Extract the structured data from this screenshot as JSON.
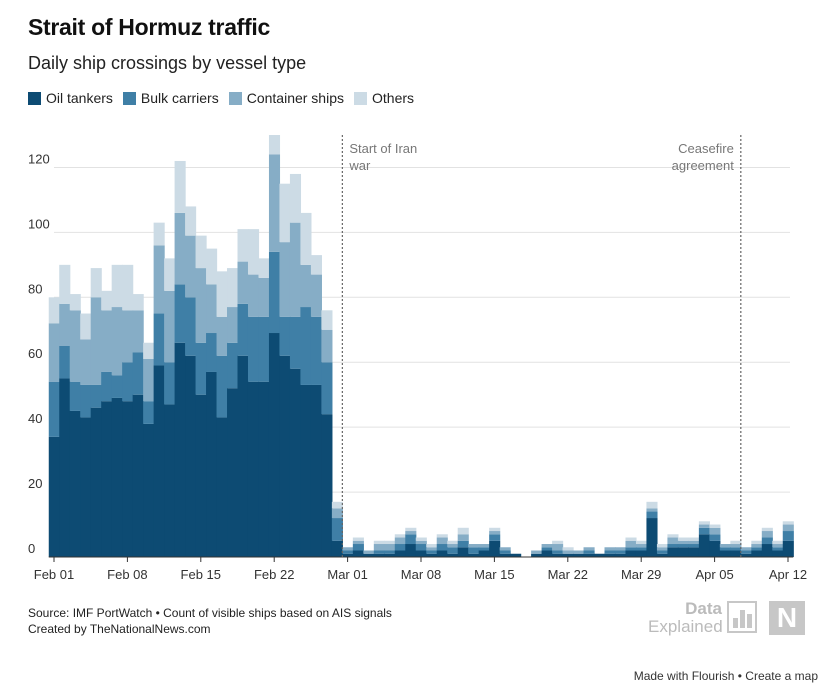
{
  "title": "Strait of Hormuz traffic",
  "subtitle": "Daily ship crossings by vessel type",
  "legend": [
    {
      "label": "Oil tankers",
      "color": "#0d4b73"
    },
    {
      "label": "Bulk carriers",
      "color": "#3f7fa6"
    },
    {
      "label": "Container ships",
      "color": "#86adc6"
    },
    {
      "label": "Others",
      "color": "#ccdbe5"
    }
  ],
  "chart_data": {
    "type": "bar",
    "stacked": true,
    "categories": [
      "Feb 01",
      "Feb 02",
      "Feb 03",
      "Feb 04",
      "Feb 05",
      "Feb 06",
      "Feb 07",
      "Feb 08",
      "Feb 09",
      "Feb 10",
      "Feb 11",
      "Feb 12",
      "Feb 13",
      "Feb 14",
      "Feb 15",
      "Feb 16",
      "Feb 17",
      "Feb 18",
      "Feb 19",
      "Feb 20",
      "Feb 21",
      "Feb 22",
      "Feb 23",
      "Feb 24",
      "Feb 25",
      "Feb 26",
      "Feb 27",
      "Feb 28",
      "Mar 01",
      "Mar 02",
      "Mar 03",
      "Mar 04",
      "Mar 05",
      "Mar 06",
      "Mar 07",
      "Mar 08",
      "Mar 09",
      "Mar 10",
      "Mar 11",
      "Mar 12",
      "Mar 13",
      "Mar 14",
      "Mar 15",
      "Mar 16",
      "Mar 17",
      "Mar 18",
      "Mar 19",
      "Mar 20",
      "Mar 21",
      "Mar 22",
      "Mar 23",
      "Mar 24",
      "Mar 25",
      "Mar 26",
      "Mar 27",
      "Mar 28",
      "Mar 29",
      "Mar 30",
      "Mar 31",
      "Apr 01",
      "Apr 02",
      "Apr 03",
      "Apr 04",
      "Apr 05",
      "Apr 06",
      "Apr 07",
      "Apr 08",
      "Apr 09",
      "Apr 10",
      "Apr 11",
      "Apr 12"
    ],
    "series": [
      {
        "name": "Oil tankers",
        "values": [
          37,
          55,
          45,
          43,
          46,
          48,
          49,
          48,
          50,
          41,
          59,
          47,
          66,
          62,
          50,
          57,
          43,
          52,
          62,
          54,
          54,
          69,
          62,
          58,
          53,
          53,
          44,
          5,
          1,
          2,
          1,
          1,
          1,
          2,
          4,
          2,
          1,
          2,
          1,
          3,
          1,
          2,
          5,
          1,
          1,
          0,
          1,
          2,
          1,
          1,
          1,
          1,
          1,
          1,
          1,
          2,
          2,
          12,
          1,
          3,
          3,
          3,
          7,
          5,
          2,
          2,
          1,
          2,
          4,
          2,
          5
        ]
      },
      {
        "name": "Bulk carriers",
        "values": [
          17,
          10,
          9,
          10,
          7,
          9,
          7,
          12,
          13,
          7,
          16,
          13,
          18,
          18,
          16,
          12,
          19,
          14,
          16,
          20,
          20,
          25,
          12,
          16,
          24,
          21,
          16,
          7,
          1,
          2,
          0,
          1,
          1,
          2,
          3,
          2,
          1,
          2,
          2,
          2,
          2,
          1,
          2,
          1,
          0,
          0,
          0,
          1,
          1,
          0,
          0,
          1,
          0,
          1,
          1,
          1,
          1,
          2,
          1,
          1,
          1,
          1,
          2,
          2,
          1,
          1,
          1,
          1,
          2,
          1,
          3
        ]
      },
      {
        "name": "Container ships",
        "values": [
          18,
          13,
          22,
          14,
          27,
          19,
          21,
          16,
          13,
          13,
          21,
          22,
          22,
          19,
          23,
          15,
          12,
          11,
          13,
          13,
          12,
          30,
          23,
          29,
          13,
          13,
          10,
          3,
          1,
          1,
          1,
          2,
          2,
          2,
          1,
          1,
          1,
          2,
          1,
          2,
          1,
          1,
          1,
          1,
          0,
          0,
          1,
          1,
          2,
          1,
          1,
          1,
          0,
          1,
          1,
          2,
          1,
          1,
          1,
          2,
          1,
          1,
          1,
          2,
          1,
          1,
          1,
          1,
          2,
          1,
          2
        ]
      },
      {
        "name": "Others",
        "values": [
          8,
          12,
          5,
          8,
          9,
          6,
          13,
          14,
          5,
          5,
          7,
          10,
          16,
          9,
          10,
          11,
          14,
          12,
          10,
          14,
          6,
          6,
          18,
          15,
          16,
          6,
          6,
          2,
          0,
          1,
          0,
          1,
          1,
          1,
          1,
          1,
          1,
          1,
          1,
          2,
          0,
          0,
          1,
          0,
          0,
          0,
          0,
          0,
          1,
          1,
          0,
          0,
          0,
          0,
          0,
          1,
          1,
          2,
          1,
          1,
          1,
          1,
          1,
          1,
          0,
          1,
          0,
          1,
          1,
          1,
          1
        ]
      }
    ],
    "yaxis": {
      "min": 0,
      "max": 130,
      "ticks": [
        "0",
        "20",
        "40",
        "60",
        "80",
        "100",
        "120"
      ]
    },
    "xaxis": {
      "tick_labels": [
        "Feb 01",
        "Feb 08",
        "Feb 15",
        "Feb 22",
        "Mar 01",
        "Mar 08",
        "Mar 15",
        "Mar 22",
        "Mar 29",
        "Apr 05",
        "Apr 12"
      ],
      "tick_indices": [
        0,
        7,
        14,
        21,
        28,
        35,
        42,
        49,
        56,
        63,
        70
      ]
    },
    "annotations": [
      {
        "index": 27.5,
        "lines": [
          "Start of Iran",
          "war"
        ],
        "align": "left"
      },
      {
        "index": 65.5,
        "lines": [
          "Ceasefire",
          "agreement"
        ],
        "align": "right"
      }
    ],
    "grid": true
  },
  "footer": {
    "source": "Source: IMF PortWatch • Count of visible ships based on AIS signals",
    "credit": "Created by TheNationalNews.com"
  },
  "brand": {
    "line1": "Data",
    "line2": "Explained",
    "logo_letter": "N"
  },
  "flourish": {
    "made_with": "Made with Flourish",
    "separator": " • ",
    "create": "Create a map"
  }
}
